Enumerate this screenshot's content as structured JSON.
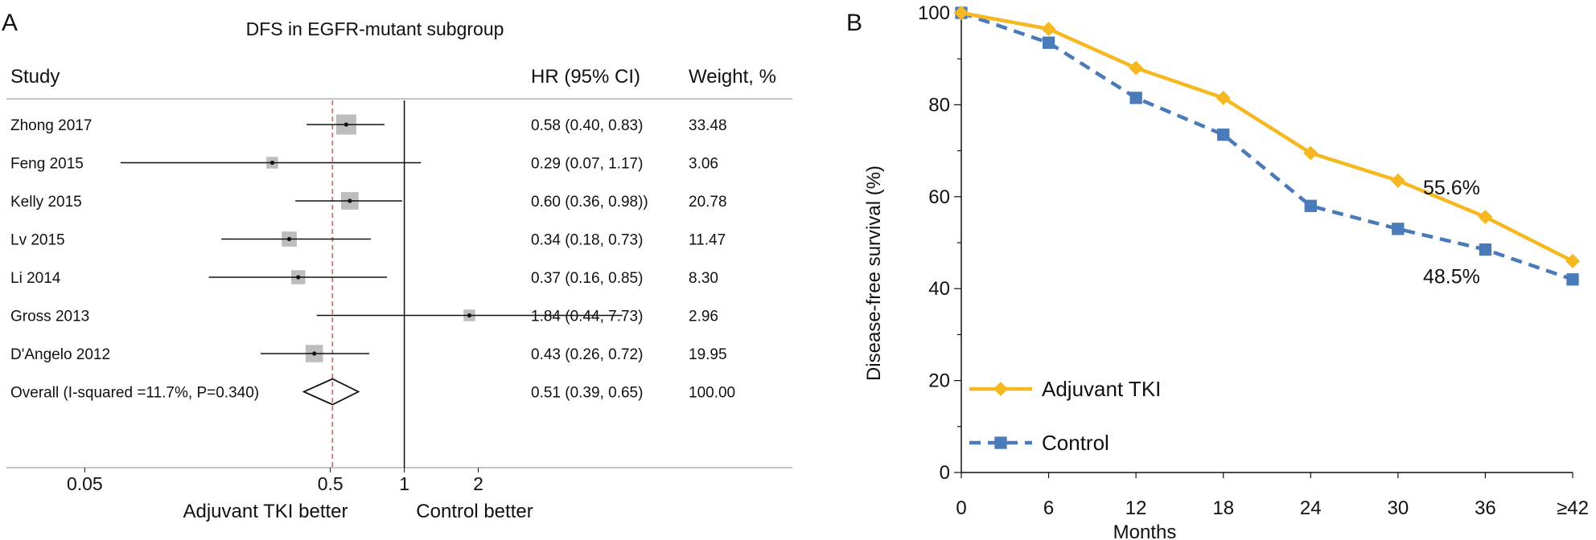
{
  "panelA": {
    "label": "A",
    "chart_data": {
      "type": "forest",
      "title": "DFS in EGFR-mutant subgroup",
      "col_study": "Study",
      "col_hr": "HR (95% CI)",
      "col_weight": "Weight, %",
      "x_scale": "log",
      "xlim": [
        0.024,
        38
      ],
      "ticks": [
        {
          "value": 0.05,
          "label": "0.05"
        },
        {
          "value": 0.5,
          "label": "0.5"
        },
        {
          "value": 1,
          "label": "1"
        },
        {
          "value": 2,
          "label": "2"
        }
      ],
      "reference_line": 1,
      "overall_line": 0.51,
      "left_label": "Adjuvant TKI better",
      "right_label": "Control better",
      "studies": [
        {
          "name": "Zhong 2017",
          "hr": 0.58,
          "lo": 0.4,
          "hi": 0.83,
          "hr_text": "0.58 (0.40, 0.83)",
          "weight": 33.48,
          "weight_text": "33.48"
        },
        {
          "name": "Feng 2015",
          "hr": 0.29,
          "lo": 0.07,
          "hi": 1.17,
          "hr_text": "0.29 (0.07, 1.17)",
          "weight": 3.06,
          "weight_text": "3.06"
        },
        {
          "name": "Kelly 2015",
          "hr": 0.6,
          "lo": 0.36,
          "hi": 0.98,
          "hr_text": "0.60 (0.36, 0.98))",
          "weight": 20.78,
          "weight_text": "20.78"
        },
        {
          "name": "Lv 2015",
          "hr": 0.34,
          "lo": 0.18,
          "hi": 0.73,
          "hr_text": "0.34 (0.18, 0.73)",
          "weight": 11.47,
          "weight_text": "11.47"
        },
        {
          "name": "Li 2014",
          "hr": 0.37,
          "lo": 0.16,
          "hi": 0.85,
          "hr_text": "0.37 (0.16, 0.85)",
          "weight": 8.3,
          "weight_text": "8.30"
        },
        {
          "name": "Gross 2013",
          "hr": 1.84,
          "lo": 0.44,
          "hi": 7.73,
          "hr_text": "1.84 (0.44, 7.73)",
          "weight": 2.96,
          "weight_text": "2.96"
        },
        {
          "name": "D'Angelo 2012",
          "hr": 0.43,
          "lo": 0.26,
          "hi": 0.72,
          "hr_text": "0.43 (0.26, 0.72)",
          "weight": 19.95,
          "weight_text": "19.95"
        }
      ],
      "overall": {
        "name": "Overall (I-squared =11.7%, P=0.340)",
        "hr": 0.51,
        "lo": 0.39,
        "hi": 0.65,
        "hr_text": "0.51 (0.39, 0.65)",
        "weight_text": "100.00"
      }
    }
  },
  "panelB": {
    "label": "B",
    "chart_data": {
      "type": "line",
      "title": "",
      "xlabel": "Months",
      "ylabel": "Disease-free survival (%)",
      "categories": [
        "0",
        "6",
        "12",
        "18",
        "24",
        "30",
        "36",
        "≥42"
      ],
      "ylim": [
        0,
        100
      ],
      "yticks": [
        0,
        20,
        40,
        60,
        80,
        100
      ],
      "series": [
        {
          "name": "Adjuvant TKI",
          "values": [
            100,
            96.5,
            88,
            81.5,
            69.5,
            63.5,
            55.6,
            46
          ],
          "color": "#f5b820",
          "dash": "solid",
          "marker": "diamond"
        },
        {
          "name": "Control",
          "values": [
            100,
            93.5,
            81.5,
            73.5,
            58,
            53,
            48.5,
            42
          ],
          "color": "#4a7ab8",
          "dash": "dashed",
          "marker": "square"
        }
      ],
      "annotations": [
        {
          "text": "55.6%",
          "series": 0,
          "index": 6
        },
        {
          "text": "48.5%",
          "series": 1,
          "index": 6
        }
      ],
      "legend_position": "bottom-left"
    }
  }
}
